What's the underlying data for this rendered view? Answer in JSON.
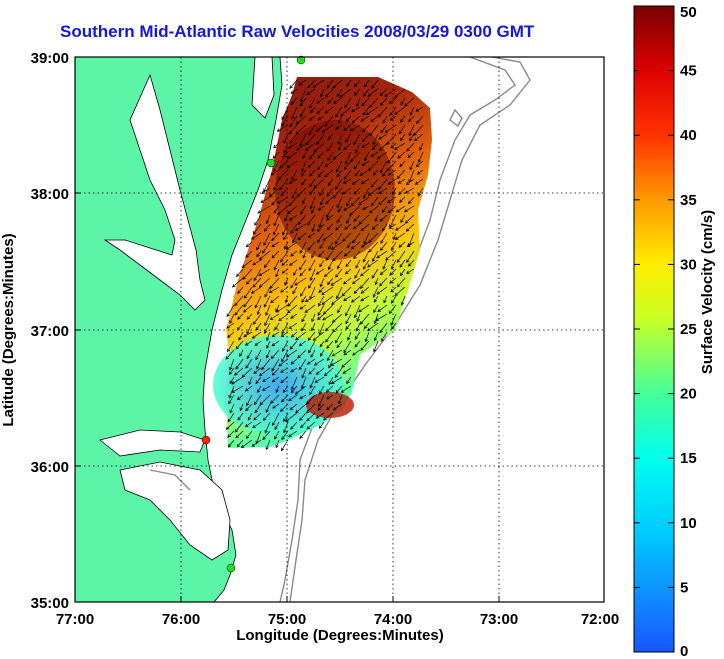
{
  "title": "Southern Mid-Atlantic Raw Velocities 2008/03/29 0300 GMT",
  "x_axis": {
    "label": "Longitude (Degrees:Minutes)",
    "ticks": [
      "77:00",
      "76:00",
      "75:00",
      "74:00",
      "73:00",
      "72:00"
    ]
  },
  "y_axis": {
    "label": "Latitude (Degrees:Minutes)",
    "ticks": [
      "39:00",
      "38:00",
      "37:00",
      "36:00",
      "35:00"
    ]
  },
  "colorbar": {
    "label": "Surface Velocity (cm/s)",
    "ticks": [
      "50",
      "45",
      "40",
      "35",
      "30",
      "25",
      "20",
      "15",
      "10",
      "5",
      "0"
    ],
    "colors": [
      "#0000ff",
      "#00bfff",
      "#00ffff",
      "#55ff88",
      "#ffff00",
      "#ff8800",
      "#ff0000",
      "#7a0000"
    ]
  },
  "map": {
    "land_color": "#5cf5a8",
    "background": "#ffffff",
    "grid": "dotted",
    "lon_range": [
      -77,
      -72
    ],
    "lat_range": [
      35,
      39
    ],
    "stations": [
      {
        "color": "#22dd22"
      },
      {
        "color": "#22dd22"
      },
      {
        "color": "#ff2200"
      },
      {
        "color": "#22dd22"
      }
    ]
  }
}
